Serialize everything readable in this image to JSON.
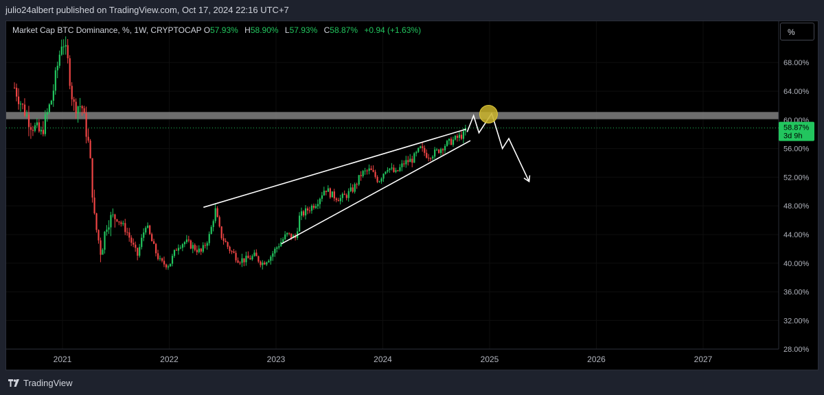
{
  "banner": "julio24albert published on TradingView.com, Oct 17, 2024 22:16 UTC+7",
  "legend": {
    "title": "Market Cap BTC Dominance, %, 1W, CRYPTOCAP",
    "o_label": "O",
    "o_value": "57.93%",
    "h_label": "H",
    "h_value": "58.90%",
    "l_label": "L",
    "l_value": "57.93%",
    "c_label": "C",
    "c_value": "58.87%",
    "change": "+0.94 (+1.63%)"
  },
  "scale_button": "%",
  "price_badge": {
    "value": "58.87%",
    "countdown": "3d 9h"
  },
  "footer_logo": "TradingView",
  "colors": {
    "up": "#22c55e",
    "down": "#ef4444",
    "background": "#000000",
    "frame": "#1e222d",
    "resistance_zone": "#808080",
    "highlight_circle": "#c9b32a"
  },
  "chart_data": {
    "type": "candlestick",
    "symbol": "Market Cap BTC Dominance, %, 1W, CRYPTOCAP",
    "x_axis": {
      "ticks": [
        "2021",
        "2022",
        "2023",
        "2024",
        "2025",
        "2026",
        "2027"
      ]
    },
    "y_axis": {
      "ticks": [
        "68.00%",
        "64.00%",
        "60.00%",
        "56.00%",
        "52.00%",
        "48.00%",
        "44.00%",
        "40.00%",
        "36.00%",
        "32.00%",
        "28.00%"
      ],
      "range": [
        27.5,
        72.5
      ]
    },
    "last_price": 58.87,
    "close_series": {
      "start": 2020.55,
      "step_years": 0.0192,
      "anchors": [
        [
          2020.55,
          64.5
        ],
        [
          2020.62,
          62.0
        ],
        [
          2020.7,
          59.5
        ],
        [
          2020.8,
          58.0
        ],
        [
          2020.9,
          63.0
        ],
        [
          2020.97,
          69.0
        ],
        [
          2021.0,
          71.5
        ],
        [
          2021.05,
          68.0
        ],
        [
          2021.1,
          62.0
        ],
        [
          2021.18,
          62.0
        ],
        [
          2021.25,
          56.0
        ],
        [
          2021.3,
          46.0
        ],
        [
          2021.36,
          41.5
        ],
        [
          2021.42,
          46.0
        ],
        [
          2021.5,
          46.5
        ],
        [
          2021.6,
          44.5
        ],
        [
          2021.7,
          41.0
        ],
        [
          2021.78,
          45.5
        ],
        [
          2021.86,
          42.0
        ],
        [
          2021.92,
          40.0
        ],
        [
          2022.0,
          39.8
        ],
        [
          2022.08,
          42.5
        ],
        [
          2022.15,
          43.0
        ],
        [
          2022.25,
          42.0
        ],
        [
          2022.3,
          41.5
        ],
        [
          2022.38,
          44.0
        ],
        [
          2022.43,
          47.5
        ],
        [
          2022.48,
          44.0
        ],
        [
          2022.56,
          42.0
        ],
        [
          2022.65,
          40.5
        ],
        [
          2022.72,
          40.5
        ],
        [
          2022.8,
          41.0
        ],
        [
          2022.87,
          40.0
        ],
        [
          2022.95,
          41.0
        ],
        [
          2023.02,
          42.5
        ],
        [
          2023.1,
          44.0
        ],
        [
          2023.18,
          43.5
        ],
        [
          2023.22,
          46.5
        ],
        [
          2023.3,
          47.5
        ],
        [
          2023.38,
          48.5
        ],
        [
          2023.46,
          50.5
        ],
        [
          2023.52,
          49.5
        ],
        [
          2023.6,
          49.0
        ],
        [
          2023.66,
          49.5
        ],
        [
          2023.73,
          50.5
        ],
        [
          2023.8,
          52.5
        ],
        [
          2023.88,
          53.0
        ],
        [
          2023.96,
          51.5
        ],
        [
          2024.04,
          53.5
        ],
        [
          2024.12,
          52.5
        ],
        [
          2024.2,
          54.0
        ],
        [
          2024.28,
          54.5
        ],
        [
          2024.35,
          56.0
        ],
        [
          2024.42,
          55.0
        ],
        [
          2024.5,
          55.5
        ],
        [
          2024.58,
          56.5
        ],
        [
          2024.64,
          57.0
        ],
        [
          2024.7,
          57.5
        ],
        [
          2024.76,
          58.0
        ],
        [
          2024.79,
          58.87
        ]
      ]
    },
    "annotations": {
      "resistance_zone": [
        60.1,
        61.1
      ],
      "rising_wedge_upper": [
        [
          2022.32,
          47.8
        ],
        [
          2024.78,
          58.7
        ]
      ],
      "rising_wedge_lower": [
        [
          2023.05,
          42.7
        ],
        [
          2024.82,
          57.1
        ]
      ],
      "projection_path": [
        [
          2024.79,
          58.3
        ],
        [
          2024.85,
          60.6
        ],
        [
          2024.9,
          58.2
        ],
        [
          2025.02,
          60.9
        ],
        [
          2025.12,
          56.0
        ],
        [
          2025.18,
          57.4
        ],
        [
          2025.37,
          51.4
        ]
      ],
      "highlight_circle": {
        "x": 2024.99,
        "y": 60.8
      }
    }
  }
}
